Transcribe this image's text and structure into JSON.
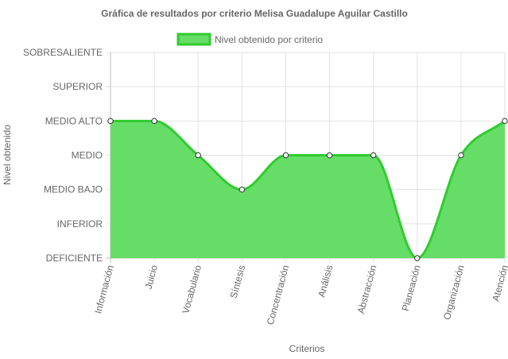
{
  "chart_data": {
    "type": "area",
    "title": "Gráfica de resultados por criterio Melisa Guadalupe Aguilar Castillo",
    "xlabel": "Criterios",
    "ylabel": "Nivel obtenido",
    "y_levels": [
      "DEFICIENTE",
      "INFERIOR",
      "MEDIO BAJO",
      "MEDIO",
      "MEDIO ALTO",
      "SUPERIOR",
      "SOBRESALIENTE"
    ],
    "categories": [
      "Información",
      "Juicio",
      "Vocabulario",
      "Síntesis",
      "Concentración",
      "Análisis",
      "Abstracción",
      "Planeación",
      "Organización",
      "Atención"
    ],
    "series": [
      {
        "name": "Nivel obtenido por criterio",
        "values": [
          "MEDIO ALTO",
          "MEDIO ALTO",
          "MEDIO",
          "MEDIO BAJO",
          "MEDIO",
          "MEDIO",
          "MEDIO",
          "DEFICIENTE",
          "MEDIO",
          "MEDIO ALTO"
        ]
      }
    ],
    "legend_position": "top",
    "grid": true,
    "fill_color": "#66dd66",
    "line_color": "#2ecc2e"
  }
}
